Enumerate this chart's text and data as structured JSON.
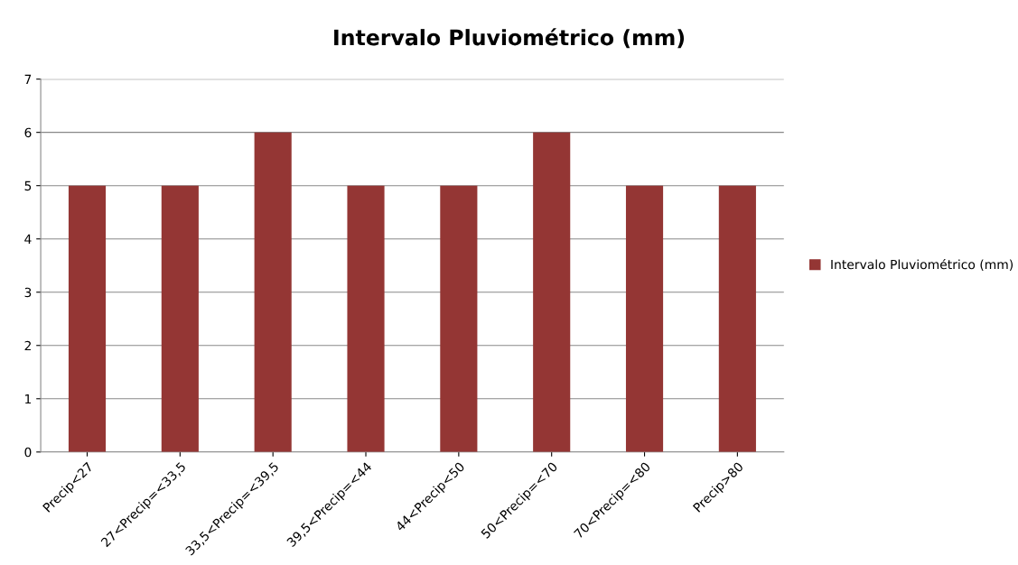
{
  "chart_data": {
    "type": "bar",
    "title": "Intervalo Pluviométrico (mm)",
    "categories": [
      "Precip<27",
      "27<Precip=<33,5",
      "33,5<Precip=<39,5",
      "39,5<Precip=<44",
      "44<Precip<50",
      "50<Precip=<70",
      "70<Precip=<80",
      "Precip>80"
    ],
    "series": [
      {
        "name": "Intervalo Pluviométrico (mm)",
        "color": "#943634",
        "values": [
          5,
          5,
          6,
          5,
          5,
          6,
          5,
          5
        ]
      }
    ],
    "ylim": [
      0,
      7
    ],
    "yticks": [
      0,
      1,
      2,
      3,
      4,
      5,
      6,
      7
    ],
    "grid": "y",
    "legend": "right"
  }
}
